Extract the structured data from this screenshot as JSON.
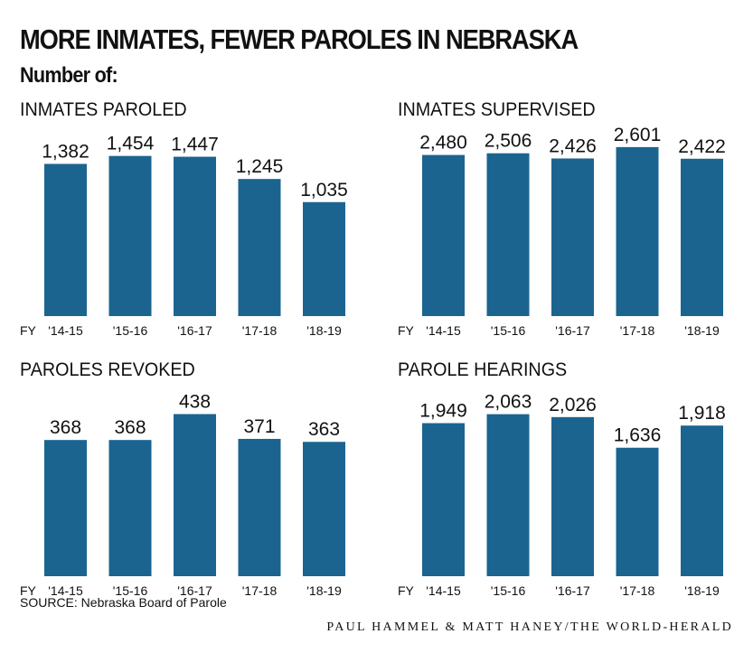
{
  "header": {
    "title": "MORE INMATES, FEWER PAROLES IN NEBRASKA",
    "subtitle": "Number of:"
  },
  "footer": {
    "source": "SOURCE: Nebraska Board of Parole",
    "credit": "PAUL HAMMEL & MATT HANEY/THE WORLD-HERALD"
  },
  "colors": {
    "bar": "#1b6490"
  },
  "chart_data": [
    {
      "type": "bar",
      "title": "INMATES PAROLED",
      "axis_prefix": "FY",
      "categories": [
        "'14-15",
        "'15-16",
        "'16-17",
        "'17-18",
        "'18-19"
      ],
      "values": [
        1382,
        1454,
        1447,
        1245,
        1035
      ],
      "value_labels": [
        "1,382",
        "1,454",
        "1,447",
        "1,245",
        "1,035"
      ],
      "ylim": [
        0,
        1640
      ]
    },
    {
      "type": "bar",
      "title": "INMATES SUPERVISED",
      "axis_prefix": "FY",
      "categories": [
        "'14-15",
        "'15-16",
        "'16-17",
        "'17-18",
        "'18-19"
      ],
      "values": [
        2480,
        2506,
        2426,
        2601,
        2422
      ],
      "value_labels": [
        "2,480",
        "2,506",
        "2,426",
        "2,601",
        "2,422"
      ],
      "ylim": [
        0,
        2780
      ]
    },
    {
      "type": "bar",
      "title": "PAROLES REVOKED",
      "axis_prefix": "FY",
      "categories": [
        "'14-15",
        "'15-16",
        "'16-17",
        "'17-18",
        "'18-19"
      ],
      "values": [
        368,
        368,
        438,
        371,
        363
      ],
      "value_labels": [
        "368",
        "368",
        "438",
        "371",
        "363"
      ],
      "ylim": [
        0,
        488
      ]
    },
    {
      "type": "bar",
      "title": "PAROLE HEARINGS",
      "axis_prefix": "FY",
      "categories": [
        "'14-15",
        "'15-16",
        "'16-17",
        "'17-18",
        "'18-19"
      ],
      "values": [
        1949,
        2063,
        2026,
        1636,
        1918
      ],
      "value_labels": [
        "1,949",
        "2,063",
        "2,026",
        "1,636",
        "1,918"
      ],
      "ylim": [
        0,
        2300
      ]
    }
  ]
}
